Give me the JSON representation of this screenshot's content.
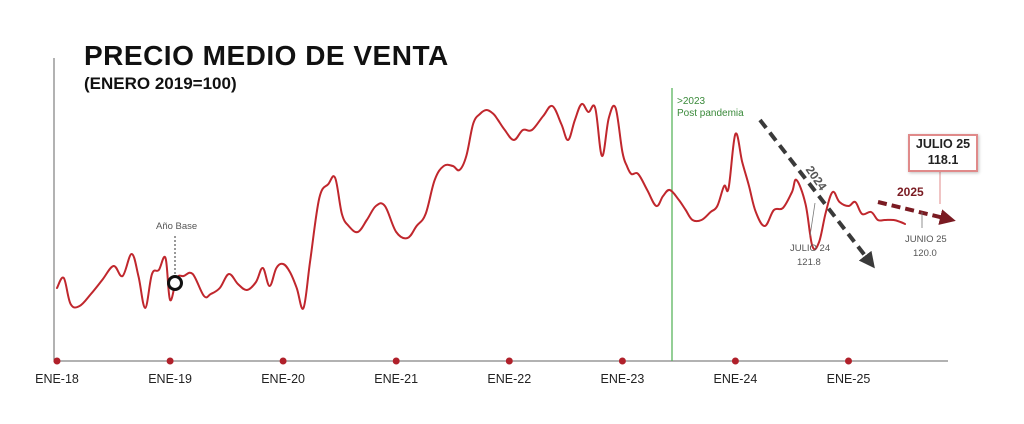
{
  "chart_data": {
    "type": "line",
    "title": "PRECIO MEDIO DE VENTA",
    "subtitle": "(ENERO 2019=100)",
    "x_tick_labels": [
      "ENE-18",
      "ENE-19",
      "ENE-20",
      "ENE-21",
      "ENE-22",
      "ENE-23",
      "ENE-24",
      "ENE-25"
    ],
    "x_range": [
      2018.0,
      2025.65
    ],
    "ylim": [
      85,
      200
    ],
    "grid": false,
    "line_color": "#c0272d",
    "series": [
      {
        "x": [
          2018.0,
          2018.06,
          2018.12,
          2018.2,
          2018.3,
          2018.4,
          2018.5,
          2018.58,
          2018.66,
          2018.72,
          2018.78,
          2018.84,
          2018.9,
          2018.96,
          2019.0,
          2019.06,
          2019.12,
          2019.2,
          2019.3,
          2019.36,
          2019.44,
          2019.52,
          2019.6,
          2019.68,
          2019.76,
          2019.82,
          2019.88,
          2019.94,
          2020.0,
          2020.06,
          2020.12,
          2020.18,
          2020.24,
          2020.32,
          2020.4,
          2020.46,
          2020.52,
          2020.58,
          2020.66,
          2020.74,
          2020.82,
          2020.9,
          2021.0,
          2021.1,
          2021.18,
          2021.26,
          2021.34,
          2021.42,
          2021.5,
          2021.56,
          2021.62,
          2021.68,
          2021.74,
          2021.8,
          2021.86,
          2021.9,
          2021.96,
          2022.04,
          2022.12,
          2022.2,
          2022.3,
          2022.38,
          2022.46,
          2022.52,
          2022.58,
          2022.64,
          2022.7,
          2022.76,
          2022.82,
          2022.88,
          2022.94,
          2023.0,
          2023.04,
          2023.08,
          2023.14,
          2023.22,
          2023.3,
          2023.36,
          2023.42,
          2023.5,
          2023.56,
          2023.62,
          2023.7,
          2023.78,
          2023.84,
          2023.9,
          2023.94,
          2024.0,
          2024.06,
          2024.12,
          2024.18,
          2024.26,
          2024.34,
          2024.42,
          2024.5,
          2024.54,
          2024.62,
          2024.68,
          2024.74,
          2024.8,
          2024.86,
          2024.92,
          2025.0,
          2025.06,
          2025.12,
          2025.2,
          2025.26,
          2025.32,
          2025.4,
          2025.46,
          2025.5
        ],
        "y": [
          106,
          111,
          98,
          97,
          103,
          110,
          117,
          112,
          123,
          112,
          96,
          113,
          115,
          121,
          100,
          111,
          112,
          113,
          102,
          103,
          106,
          113,
          108,
          105,
          109,
          116,
          107,
          116,
          118,
          114,
          106,
          96,
          120,
          151,
          158,
          161,
          143,
          137,
          134,
          140,
          147,
          147,
          134,
          131,
          137,
          143,
          160,
          167,
          167,
          165,
          172,
          188,
          193,
          195,
          193,
          190,
          185,
          180,
          185,
          185,
          192,
          197,
          188,
          180,
          190,
          198,
          194,
          196,
          172,
          191,
          196,
          174,
          167,
          163,
          163,
          155,
          147,
          152,
          155,
          150,
          145,
          140,
          140,
          144,
          147,
          157,
          156,
          183,
          169,
          157,
          144,
          137,
          145,
          146,
          154,
          160,
          148,
          127,
          129,
          144,
          154,
          149,
          147,
          149,
          143,
          144,
          140,
          140,
          140,
          139,
          138
        ]
      }
    ],
    "annotations": {
      "base_label": "Año Base",
      "post_label_1": ">2023",
      "post_label_2": "Post pandemia",
      "trend_2024": "2024",
      "trend_2025": "2025",
      "julio24_label": "JULIO 24",
      "julio24_value": "121.8",
      "junio25_label": "JUNIO 25",
      "junio25_value": "120.0",
      "callout_label": "JULIO 25",
      "callout_value": "118.1"
    },
    "colors": {
      "line": "#c0272d",
      "tick_dot": "#b0202a",
      "axis": "#555555",
      "post_pandemic_line": "#4caf50",
      "trend_2024": "#3a3a3a",
      "trend_2025": "#7a1b22"
    }
  }
}
